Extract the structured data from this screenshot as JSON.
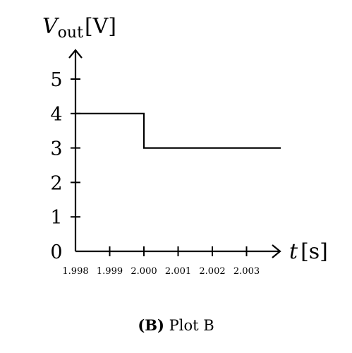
{
  "chart_data": {
    "type": "line",
    "title": "",
    "xlabel": "t",
    "xunit": "[s]",
    "ylabel_main": "V",
    "ylabel_sub": "out",
    "yunit": "[V]",
    "x_ticks": [
      "1.998",
      "1.999",
      "2.000",
      "2.001",
      "2.002",
      "2.003"
    ],
    "y_ticks": [
      "0",
      "1",
      "2",
      "3",
      "4",
      "5"
    ],
    "xlim": [
      1.998,
      2.004
    ],
    "ylim": [
      0,
      6
    ],
    "grid": false,
    "series": [
      {
        "step": true,
        "x": [
          1.998,
          2.0,
          2.0,
          2.004
        ],
        "y": [
          4,
          4,
          3,
          3
        ]
      }
    ]
  },
  "caption": {
    "label": "(B)",
    "text": " Plot B"
  }
}
